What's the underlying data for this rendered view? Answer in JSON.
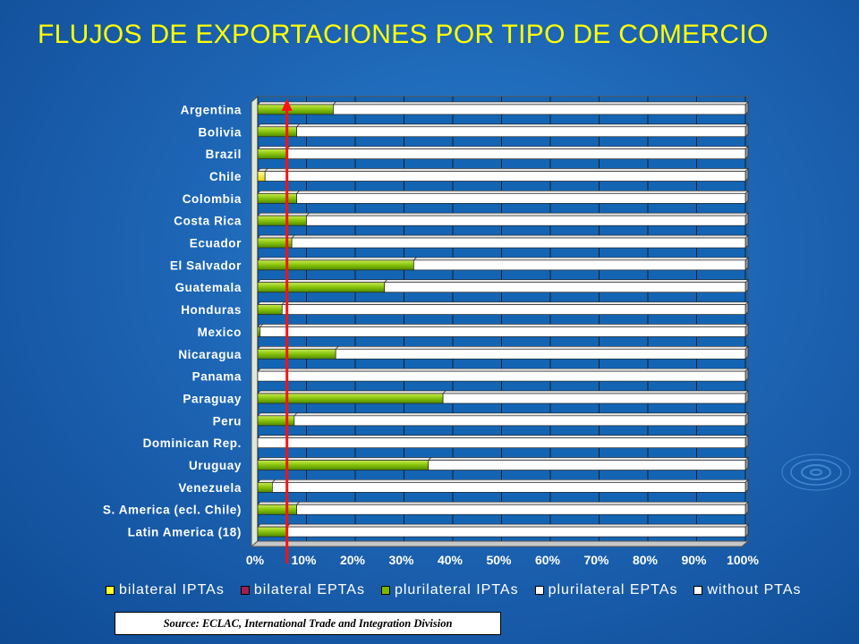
{
  "title": "FLUJOS DE EXPORTACIONES POR TIPO DE COMERCIO",
  "source": "Source: ECLAC, International Trade and Integration Division",
  "chart_data": {
    "type": "bar",
    "orientation": "horizontal",
    "stacked": "percent",
    "categories": [
      "Argentina",
      "Bolivia",
      "Brazil",
      "Chile",
      "Colombia",
      "Costa Rica",
      "Ecuador",
      "El Salvador",
      "Guatemala",
      "Honduras",
      "Mexico",
      "Nicaragua",
      "Panama",
      "Paraguay",
      "Peru",
      "Dominican Rep.",
      "Uruguay",
      "Venezuela",
      "S. America (ecl. Chile)",
      "Latin America (18)"
    ],
    "series": [
      {
        "name": "bilateral IPTAs",
        "color": "#ffff33",
        "values": [
          0,
          0,
          0,
          1.5,
          0,
          0,
          0,
          0,
          0,
          0,
          0,
          0,
          0,
          0,
          0,
          0,
          0,
          0,
          0,
          0
        ]
      },
      {
        "name": "bilateral EPTAs",
        "color": "#a02050",
        "values": [
          0,
          0,
          0,
          0,
          0,
          0,
          0,
          0,
          0,
          0,
          0,
          0,
          0,
          0,
          0,
          0,
          0,
          0,
          0,
          0
        ]
      },
      {
        "name": "plurilateral IPTAs",
        "color": "#7ab800",
        "values": [
          15.5,
          8,
          6,
          0,
          8,
          10,
          7,
          32,
          26,
          5,
          0.5,
          16,
          0,
          38,
          7.5,
          0,
          35,
          3,
          8,
          6
        ]
      },
      {
        "name": "plurilateral EPTAs",
        "color": "#ffffff",
        "values": [
          0,
          0,
          0,
          0,
          0,
          0,
          0,
          0,
          0,
          0,
          0,
          0,
          0,
          0,
          0,
          0,
          0,
          0,
          0,
          0
        ]
      },
      {
        "name": "without PTAs",
        "color": "#ffffff",
        "values": [
          84.5,
          92,
          94,
          98.5,
          92,
          90,
          93,
          68,
          74,
          95,
          99.5,
          84,
          100,
          62,
          92.5,
          100,
          65,
          97,
          92,
          94
        ]
      }
    ],
    "xticks": [
      "0%",
      "10%",
      "20%",
      "30%",
      "40%",
      "50%",
      "60%",
      "70%",
      "80%",
      "90%",
      "100%"
    ],
    "xlim": [
      0,
      100
    ],
    "reference_line_x": 6,
    "legend_position": "bottom"
  },
  "legend": [
    {
      "label": "bilateral IPTAs",
      "color": "#ffff33"
    },
    {
      "label": "bilateral EPTAs",
      "color": "#a02050"
    },
    {
      "label": "plurilateral IPTAs",
      "color": "#7ab800"
    },
    {
      "label": "plurilateral EPTAs",
      "color": "#ffffff"
    },
    {
      "label": "without PTAs",
      "color": "#ffffff"
    }
  ]
}
